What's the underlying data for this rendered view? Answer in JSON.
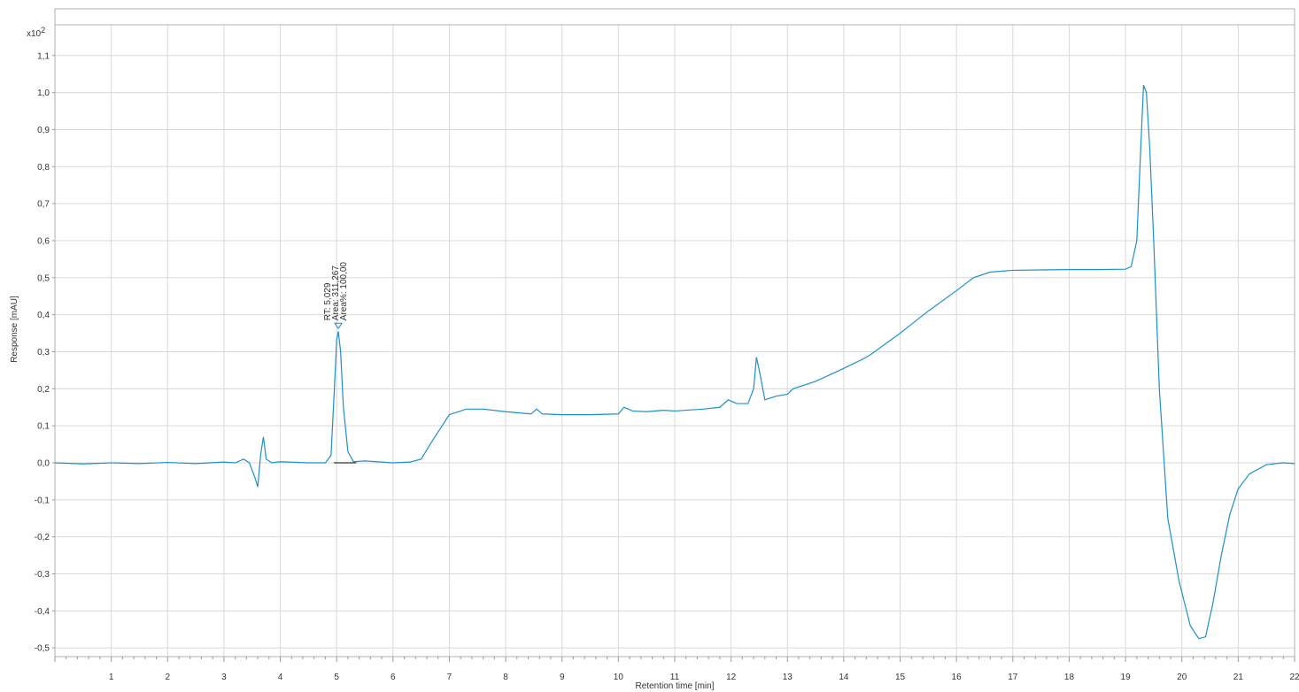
{
  "chart_data": {
    "type": "line",
    "title": "",
    "xlabel": "Retention time [min]",
    "ylabel": "Response [mAU]",
    "y_multiplier_label": "x10",
    "y_multiplier_exponent": "2",
    "xlim": [
      0,
      22
    ],
    "ylim": [
      -0.55,
      1.18
    ],
    "x_ticks": [
      1,
      2,
      3,
      4,
      5,
      6,
      7,
      8,
      9,
      10,
      11,
      12,
      13,
      14,
      15,
      16,
      17,
      18,
      19,
      20,
      21,
      22
    ],
    "y_ticks": [
      -0.5,
      -0.4,
      -0.3,
      -0.2,
      -0.1,
      0.0,
      0.1,
      0.2,
      0.3,
      0.4,
      0.5,
      0.6,
      0.7,
      0.8,
      0.9,
      1.0,
      1.1
    ],
    "y_tick_labels": [
      "-0,5",
      "-0,4",
      "-0,3",
      "-0,2",
      "-0,1",
      "0,0",
      "0,1",
      "0,2",
      "0,3",
      "0,4",
      "0,5",
      "0,6",
      "0,7",
      "0,8",
      "0,9",
      "1,0",
      "1,1"
    ],
    "grid": true,
    "series": [
      {
        "color": "#1e90c8",
        "points": [
          [
            0,
            0
          ],
          [
            0.5,
            -0.003
          ],
          [
            1,
            0
          ],
          [
            1.5,
            -0.002
          ],
          [
            2,
            0.001
          ],
          [
            2.5,
            -0.002
          ],
          [
            3,
            0.002
          ],
          [
            3.2,
            0.0
          ],
          [
            3.35,
            0.01
          ],
          [
            3.45,
            0.0
          ],
          [
            3.55,
            -0.04
          ],
          [
            3.6,
            -0.065
          ],
          [
            3.65,
            0.02
          ],
          [
            3.7,
            0.07
          ],
          [
            3.75,
            0.01
          ],
          [
            3.85,
            0.0
          ],
          [
            4,
            0.003
          ],
          [
            4.5,
            0.0
          ],
          [
            4.8,
            0.0
          ],
          [
            4.9,
            0.02
          ],
          [
            4.96,
            0.2
          ],
          [
            5.0,
            0.33
          ],
          [
            5.03,
            0.355
          ],
          [
            5.07,
            0.3
          ],
          [
            5.12,
            0.15
          ],
          [
            5.2,
            0.03
          ],
          [
            5.3,
            0.003
          ],
          [
            5.5,
            0.005
          ],
          [
            6,
            0.0
          ],
          [
            6.3,
            0.002
          ],
          [
            6.5,
            0.01
          ],
          [
            6.7,
            0.06
          ],
          [
            7.0,
            0.13
          ],
          [
            7.3,
            0.145
          ],
          [
            7.6,
            0.145
          ],
          [
            8.0,
            0.138
          ],
          [
            8.45,
            0.132
          ],
          [
            8.55,
            0.145
          ],
          [
            8.65,
            0.132
          ],
          [
            9.0,
            0.13
          ],
          [
            9.5,
            0.13
          ],
          [
            10.0,
            0.132
          ],
          [
            10.1,
            0.15
          ],
          [
            10.25,
            0.14
          ],
          [
            10.5,
            0.138
          ],
          [
            10.8,
            0.142
          ],
          [
            11.0,
            0.14
          ],
          [
            11.5,
            0.145
          ],
          [
            11.8,
            0.15
          ],
          [
            11.95,
            0.17
          ],
          [
            12.1,
            0.16
          ],
          [
            12.3,
            0.16
          ],
          [
            12.4,
            0.2
          ],
          [
            12.45,
            0.285
          ],
          [
            12.5,
            0.25
          ],
          [
            12.6,
            0.17
          ],
          [
            12.8,
            0.18
          ],
          [
            13.0,
            0.185
          ],
          [
            13.1,
            0.2
          ],
          [
            13.5,
            0.22
          ],
          [
            14.0,
            0.255
          ],
          [
            14.4,
            0.285
          ],
          [
            14.5,
            0.295
          ],
          [
            15.0,
            0.35
          ],
          [
            15.5,
            0.41
          ],
          [
            16.0,
            0.465
          ],
          [
            16.3,
            0.5
          ],
          [
            16.6,
            0.515
          ],
          [
            17.0,
            0.52
          ],
          [
            17.5,
            0.521
          ],
          [
            18.0,
            0.522
          ],
          [
            18.5,
            0.522
          ],
          [
            19.0,
            0.523
          ],
          [
            19.1,
            0.53
          ],
          [
            19.2,
            0.6
          ],
          [
            19.27,
            0.85
          ],
          [
            19.32,
            1.02
          ],
          [
            19.37,
            1.0
          ],
          [
            19.43,
            0.85
          ],
          [
            19.5,
            0.6
          ],
          [
            19.6,
            0.2
          ],
          [
            19.75,
            -0.15
          ],
          [
            19.95,
            -0.32
          ],
          [
            20.15,
            -0.44
          ],
          [
            20.3,
            -0.475
          ],
          [
            20.42,
            -0.47
          ],
          [
            20.55,
            -0.38
          ],
          [
            20.7,
            -0.25
          ],
          [
            20.85,
            -0.14
          ],
          [
            21.0,
            -0.07
          ],
          [
            21.2,
            -0.03
          ],
          [
            21.5,
            -0.005
          ],
          [
            21.8,
            0.0
          ],
          [
            22,
            -0.002
          ]
        ]
      }
    ],
    "baseline": {
      "x_start": 4.95,
      "x_end": 5.35,
      "y": 0.0,
      "color": "#000000"
    },
    "peak_annotation": {
      "x": 5.03,
      "y": 0.37,
      "lines": [
        "RT: 5,029",
        "Area: 311,267",
        "Area%: 100,00"
      ]
    }
  }
}
